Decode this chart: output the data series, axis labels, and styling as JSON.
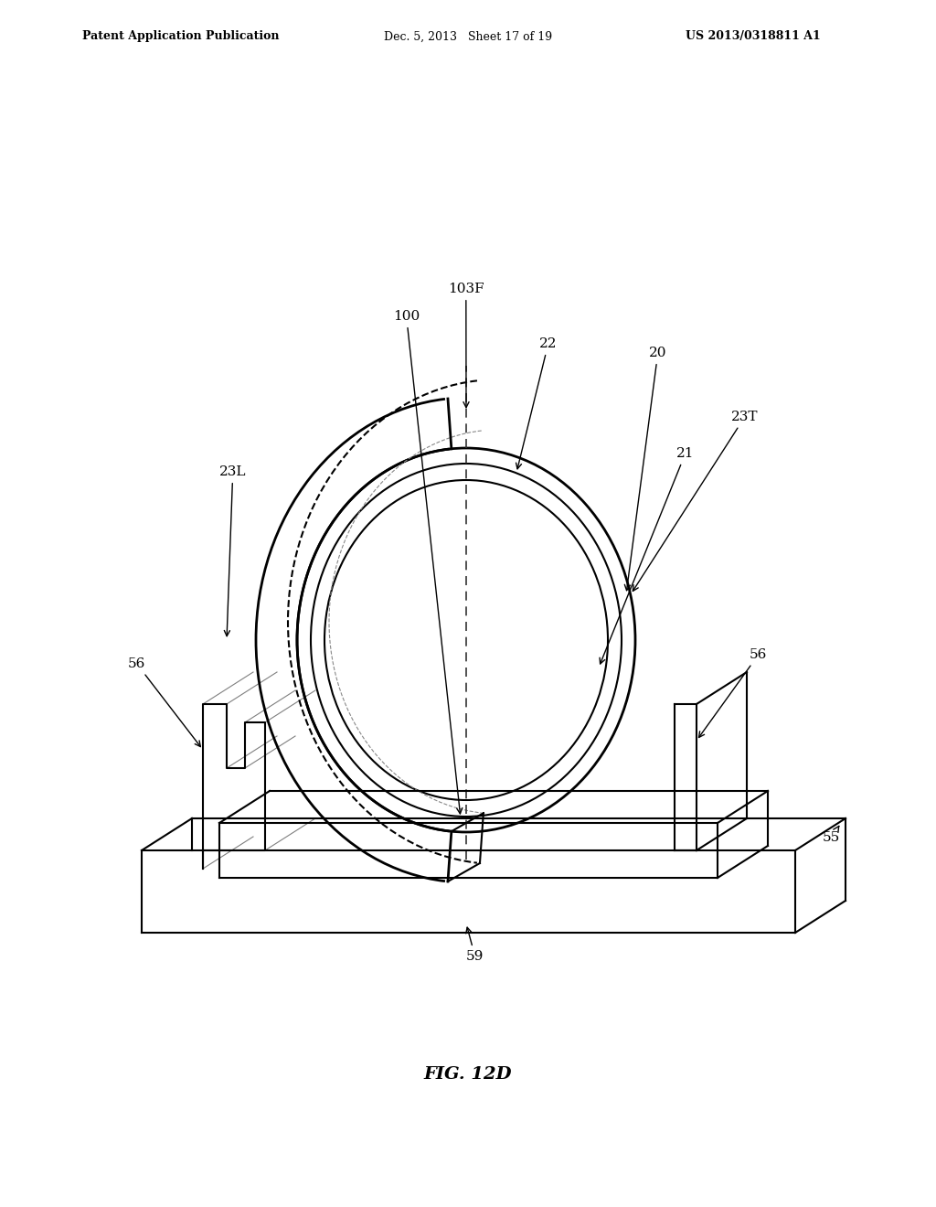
{
  "title": "FIG. 12D",
  "header_left": "Patent Application Publication",
  "header_center": "Dec. 5, 2013   Sheet 17 of 19",
  "header_right": "US 2013/0318811 A1",
  "background_color": "#ffffff",
  "line_color": "#000000",
  "dashed_color": "#555555",
  "label_100": "100",
  "label_103F": "103F",
  "label_22": "22",
  "label_20": "20",
  "label_23L": "23L",
  "label_23T": "23T",
  "label_21": "21",
  "label_56a": "56",
  "label_56b": "56",
  "label_55": "55",
  "label_59": "59",
  "fig_label": "FIG. 12D"
}
